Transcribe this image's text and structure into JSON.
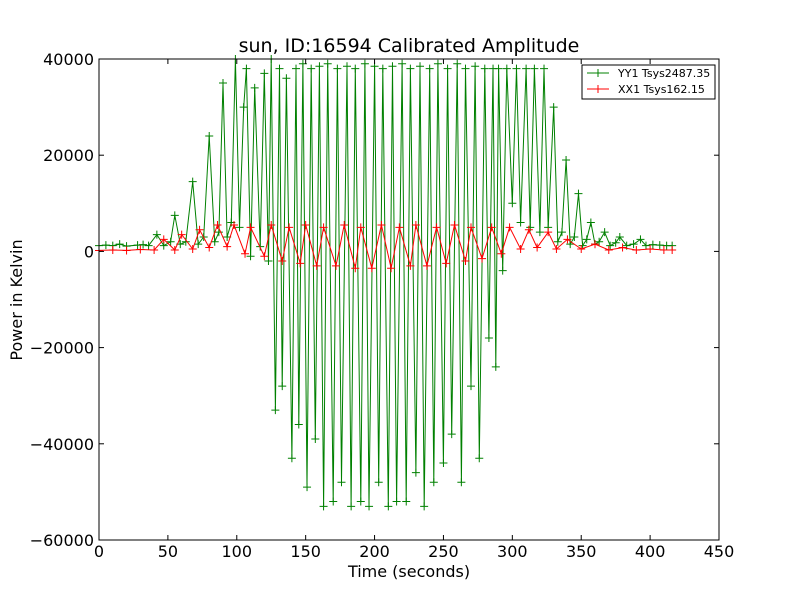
{
  "chart_data": {
    "type": "line",
    "title": "sun, ID:16594 Calibrated Amplitude",
    "xlabel": "Time (seconds)",
    "ylabel": "Power in Kelvin",
    "xlim": [
      0,
      450
    ],
    "ylim": [
      -60000,
      40000
    ],
    "xticks": [
      0,
      50,
      100,
      150,
      200,
      250,
      300,
      350,
      400,
      450
    ],
    "yticks": [
      -60000,
      -40000,
      -20000,
      0,
      20000,
      40000
    ],
    "xtick_labels": [
      "0",
      "50",
      "100",
      "150",
      "200",
      "250",
      "300",
      "350",
      "400",
      "450"
    ],
    "ytick_labels": [
      "−60000",
      "−40000",
      "−20000",
      "0",
      "20000",
      "40000"
    ],
    "grid": false,
    "legend_position": "top-right",
    "marker": "+",
    "series": [
      {
        "name": "YY1 Tsys2487.35",
        "color": "#008000",
        "x": [
          0,
          5,
          10,
          15,
          20,
          28,
          32,
          36,
          42,
          47,
          52,
          55,
          59,
          63,
          68,
          72,
          76,
          80,
          84,
          87,
          90,
          93,
          96,
          99,
          102,
          105,
          107,
          110,
          113,
          117,
          120,
          123,
          125,
          128,
          131,
          133,
          136,
          140,
          143,
          145,
          148,
          151,
          154,
          157,
          160,
          163,
          166,
          170,
          173,
          176,
          180,
          183,
          186,
          190,
          193,
          196,
          200,
          203,
          206,
          210,
          213,
          216,
          220,
          223,
          226,
          230,
          233,
          236,
          240,
          243,
          246,
          250,
          253,
          256,
          260,
          263,
          266,
          270,
          273,
          276,
          280,
          283,
          286,
          288,
          290,
          293,
          296,
          300,
          303,
          306,
          310,
          313,
          316,
          320,
          323,
          326,
          330,
          333,
          336,
          339,
          342,
          345,
          348,
          351,
          354,
          357,
          360,
          363,
          367,
          371,
          375,
          378,
          383,
          388,
          393,
          397,
          402,
          407,
          412,
          416
        ],
        "values": [
          1200,
          1300,
          1200,
          1500,
          1100,
          1300,
          1400,
          1200,
          3500,
          1200,
          2000,
          7500,
          1500,
          2000,
          14500,
          1500,
          3000,
          24000,
          2000,
          4000,
          35000,
          3000,
          6000,
          40000,
          5000,
          30000,
          38000,
          -1000,
          34000,
          1000,
          37000,
          -2000,
          40000,
          -33000,
          38000,
          -28000,
          36000,
          -43000,
          38000,
          -36000,
          39000,
          -49000,
          38000,
          -39000,
          38500,
          -53000,
          39000,
          -52000,
          38000,
          -48000,
          38500,
          -53000,
          38000,
          -52000,
          39000,
          -53000,
          38500,
          -48000,
          38000,
          -53000,
          38500,
          -52000,
          39000,
          -52000,
          38000,
          -46000,
          38500,
          -53000,
          38000,
          -48000,
          39000,
          -44000,
          38000,
          -38000,
          39000,
          -48000,
          38000,
          -28000,
          38500,
          -43000,
          38000,
          -18000,
          38000,
          -24000,
          38000,
          -4000,
          38000,
          10000,
          38000,
          6000,
          38000,
          5000,
          38000,
          4000,
          38000,
          5000,
          30000,
          2000,
          4000,
          19000,
          1500,
          3000,
          12000,
          1200,
          2500,
          6000,
          1500,
          2000,
          4000,
          1200,
          1800,
          3000,
          1200,
          1500,
          2500,
          1200,
          1400,
          1300,
          1200,
          1200
        ]
      },
      {
        "name": "XX1 Tsys162.15",
        "color": "#ff0000",
        "x": [
          0,
          10,
          20,
          30,
          40,
          47,
          55,
          60,
          68,
          73,
          80,
          86,
          93,
          98,
          106,
          110,
          120,
          125,
          133,
          138,
          146,
          150,
          158,
          163,
          172,
          178,
          186,
          190,
          198,
          205,
          212,
          218,
          226,
          230,
          238,
          245,
          252,
          258,
          266,
          270,
          278,
          285,
          292,
          298,
          306,
          312,
          318,
          326,
          332,
          340,
          350,
          360,
          370,
          380,
          390,
          400,
          410,
          416
        ],
        "values": [
          200,
          300,
          200,
          400,
          300,
          2500,
          300,
          3500,
          500,
          4500,
          800,
          5500,
          1000,
          5500,
          -500,
          5000,
          -1000,
          5500,
          -2000,
          5000,
          -2500,
          5500,
          -3000,
          5000,
          -3000,
          5500,
          -3500,
          5000,
          -3500,
          5500,
          -3500,
          5000,
          -3000,
          5500,
          -3000,
          5000,
          -2500,
          5500,
          -2000,
          5000,
          -1500,
          5000,
          -500,
          5000,
          500,
          4500,
          800,
          4000,
          500,
          2500,
          500,
          1500,
          300,
          800,
          300,
          500,
          300,
          300
        ]
      }
    ]
  }
}
